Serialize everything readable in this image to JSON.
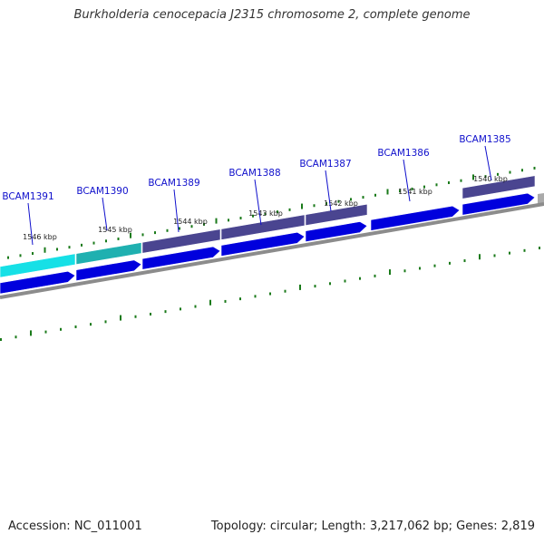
{
  "title": "Burkholderia cenocepacia J2315 chromosome 2, complete genome",
  "footer": {
    "accession": "Accession: NC_011001",
    "summary": "Topology: circular; Length: 3,217,062 bp; Genes: 2,819"
  },
  "genes": [
    {
      "label": "BCAM1391",
      "start_kbp": 1545.9,
      "end_kbp": 1545.2,
      "track_color": "#16e0e6"
    },
    {
      "label": "BCAM1390",
      "start_kbp": 1545.2,
      "end_kbp": 1544.4,
      "track_color": "#1fb0b0"
    },
    {
      "label": "BCAM1389",
      "start_kbp": 1544.4,
      "end_kbp": 1543.4,
      "track_color": "#4a4590"
    },
    {
      "label": "BCAM1388",
      "start_kbp": 1543.4,
      "end_kbp": 1542.5,
      "track_color": "#4a4590"
    },
    {
      "label": "BCAM1387",
      "start_kbp": 1542.5,
      "end_kbp": 1541.7,
      "track_color": "#4a4590"
    },
    {
      "label": "BCAM1386",
      "start_kbp": 1541.7,
      "end_kbp": 1540.6,
      "track_color": "#ffffff"
    },
    {
      "label": "BCAM1385",
      "start_kbp": 1540.6,
      "end_kbp": 1539.6,
      "track_color": "#4a4590"
    }
  ],
  "ticks": [
    "1546 kbp",
    "1545 kbp",
    "1544 kbp",
    "1543 kbp",
    "1542 kbp",
    "1541 kbp",
    "1540 kbp"
  ],
  "colors": {
    "cds_arrow": "#0000dd",
    "backbone": "#8c8c8c",
    "gc_dots": "#1a7a1a",
    "label_line": "#1010cc"
  }
}
